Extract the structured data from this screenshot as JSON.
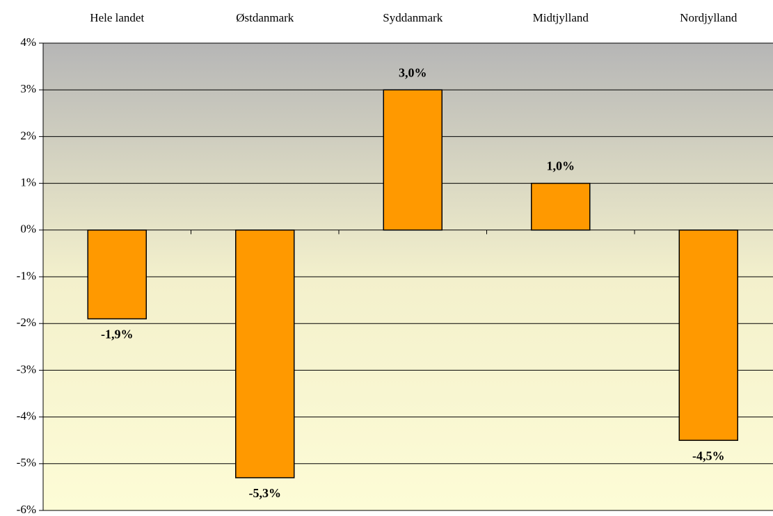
{
  "chart_data": {
    "type": "bar",
    "categories": [
      "Hele landet",
      "Østdanmark",
      "Syddanmark",
      "Midtjylland",
      "Nordjylland"
    ],
    "values": [
      -1.9,
      -5.3,
      3.0,
      1.0,
      -4.5
    ],
    "value_labels": [
      "-1,9%",
      "-5,3%",
      "3,0%",
      "1,0%",
      "-4,5%"
    ],
    "color": "#ff9900",
    "ylim": [
      -6,
      4
    ],
    "yticks": [
      {
        "value": -6,
        "label": "-6%"
      },
      {
        "value": -5,
        "label": "-5%"
      },
      {
        "value": -4,
        "label": "-4%"
      },
      {
        "value": -3,
        "label": "-3%"
      },
      {
        "value": -2,
        "label": "-2%"
      },
      {
        "value": -1,
        "label": "-1%"
      },
      {
        "value": 0,
        "label": "0%"
      },
      {
        "value": 1,
        "label": "1%"
      },
      {
        "value": 2,
        "label": "2%"
      },
      {
        "value": 3,
        "label": "3%"
      },
      {
        "value": 4,
        "label": "4%"
      }
    ],
    "grid": true
  }
}
